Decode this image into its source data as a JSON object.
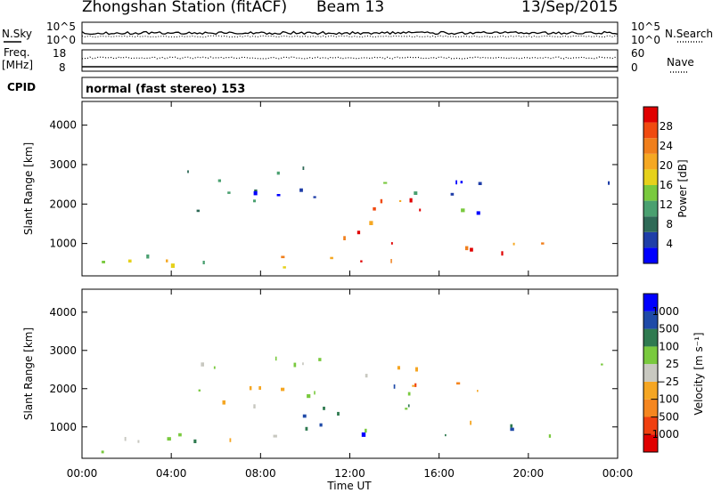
{
  "header": {
    "station": "Zhongshan Station (fitACF)",
    "beam": "Beam 13",
    "date": "13/Sep/2015"
  },
  "panels": {
    "sky": {
      "left_label_line1": "N.Sky",
      "left_ticks": [
        "10^5",
        "10^0"
      ],
      "right_ticks": [
        "10^5",
        "10^0"
      ],
      "right_label": "N.Search"
    },
    "freq": {
      "left_label_line1": "Freq.",
      "left_label_line2": "[MHz]",
      "left_ticks": [
        "18",
        "8"
      ],
      "right_ticks": [
        "60",
        "0"
      ],
      "right_label": "Nave"
    },
    "cpid": {
      "label": "CPID",
      "text": "normal (fast stereo) 153"
    }
  },
  "chart_data": [
    {
      "type": "heatmap",
      "name": "power",
      "ylabel": "Slant Range [km]",
      "xlabel": "Time UT",
      "y_ticks": [
        "4000",
        "3000",
        "2000",
        "1000"
      ],
      "y_tick_values": [
        4000,
        3000,
        2000,
        1000
      ],
      "ylim": [
        180,
        4600
      ],
      "x_ticks": [
        "00:00",
        "04:00",
        "08:00",
        "12:00",
        "16:00",
        "20:00",
        "00:00"
      ],
      "x_tick_hours": [
        0,
        4,
        8,
        12,
        16,
        20,
        24
      ],
      "xlim": [
        0,
        24
      ],
      "colorbar": {
        "label": "Power [dB]",
        "tick_labels": [
          "28",
          "24",
          "20",
          "16",
          "12",
          "8",
          "4"
        ],
        "colors": [
          "#0000ff",
          "#1f3ea8",
          "#2f6a57",
          "#4aa070",
          "#79c93e",
          "#e6d11b",
          "#f5a823",
          "#f07f1c",
          "#f04a10",
          "#e00000"
        ]
      },
      "scatter_regions": [
        {
          "t0": 0.0,
          "t1": 9.5,
          "r0": 250,
          "r1": 1000,
          "level": 0.55
        },
        {
          "t0": 9.8,
          "t1": 16.0,
          "r0": 500,
          "r1": 2200,
          "level": 0.85
        },
        {
          "t0": 12.0,
          "t1": 18.0,
          "r0": 1800,
          "r1": 3000,
          "level": 0.25
        },
        {
          "t0": 16.0,
          "t1": 21.0,
          "r0": 300,
          "r1": 1200,
          "level": 0.85
        },
        {
          "t0": 4.0,
          "t1": 11.0,
          "r0": 1500,
          "r1": 3000,
          "level": 0.15
        },
        {
          "t0": 22.8,
          "t1": 24.0,
          "r0": 2200,
          "r1": 2700,
          "level": 0.2
        }
      ]
    },
    {
      "type": "heatmap",
      "name": "velocity",
      "ylabel": "Slant Range [km]",
      "xlabel": "Time UT",
      "y_ticks": [
        "4000",
        "3000",
        "2000",
        "1000"
      ],
      "y_tick_values": [
        4000,
        3000,
        2000,
        1000
      ],
      "ylim": [
        180,
        4600
      ],
      "x_ticks": [
        "00:00",
        "04:00",
        "08:00",
        "12:00",
        "16:00",
        "20:00",
        "00:00"
      ],
      "x_tick_hours": [
        0,
        4,
        8,
        12,
        16,
        20,
        24
      ],
      "xlim": [
        0,
        24
      ],
      "colorbar": {
        "label": "Velocity [m s⁻¹]",
        "tick_labels": [
          "1000",
          "500",
          "100",
          "25",
          "−25",
          "−100",
          "−500",
          "−1000"
        ],
        "colors": [
          "#e00000",
          "#f04010",
          "#f5861f",
          "#f5a623",
          "#c8c8c0",
          "#79c93e",
          "#2f7a50",
          "#1f4aa8",
          "#0000ff"
        ]
      },
      "scatter_regions": [
        {
          "t0": 0.0,
          "t1": 9.5,
          "r0": 250,
          "r1": 1000,
          "level": 0.55
        },
        {
          "t0": 9.8,
          "t1": 16.0,
          "r0": 500,
          "r1": 2200,
          "level": 0.75
        },
        {
          "t0": 12.0,
          "t1": 18.0,
          "r0": 1800,
          "r1": 3000,
          "level": 0.35
        },
        {
          "t0": 16.0,
          "t1": 21.0,
          "r0": 300,
          "r1": 1200,
          "level": 0.6
        },
        {
          "t0": 4.0,
          "t1": 11.0,
          "r0": 1500,
          "r1": 3000,
          "level": 0.45
        },
        {
          "t0": 22.8,
          "t1": 24.0,
          "r0": 2200,
          "r1": 2700,
          "level": 0.5
        }
      ]
    }
  ]
}
